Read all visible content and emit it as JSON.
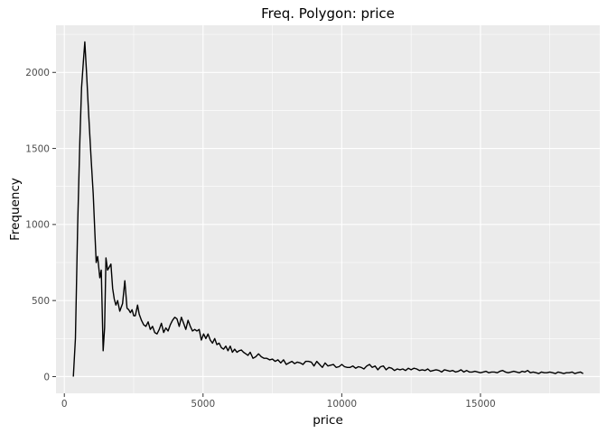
{
  "chart_data": {
    "type": "line",
    "title": "Freq. Polygon: price",
    "xlabel": "price",
    "ylabel": "Frequency",
    "xlim": [
      -300,
      19300
    ],
    "ylim": [
      -110,
      2310
    ],
    "x_ticks": [
      0,
      5000,
      10000,
      15000
    ],
    "x_tick_labels": [
      "0",
      "5000",
      "10000",
      "15000"
    ],
    "y_ticks": [
      0,
      500,
      1000,
      1500,
      2000
    ],
    "y_tick_labels": [
      "0",
      "500",
      "1000",
      "1500",
      "2000"
    ],
    "grid": true,
    "background": "#ebebeb",
    "line_color": "#000000",
    "series": [
      {
        "x": [
          326,
          400,
          480,
          560,
          620,
          690,
          740,
          800,
          880,
          960,
          1040,
          1100,
          1150,
          1200,
          1280,
          1330,
          1400,
          1450,
          1500,
          1560,
          1620,
          1680,
          1740,
          1800,
          1860,
          1920,
          2000,
          2100,
          2180,
          2260,
          2320,
          2380,
          2440,
          2500,
          2560,
          2640,
          2700,
          2780,
          2860,
          2940,
          3020,
          3100,
          3180,
          3260,
          3340,
          3420,
          3500,
          3580,
          3660,
          3740,
          3820,
          3900,
          3980,
          4060,
          4140,
          4220,
          4300,
          4380,
          4460,
          4540,
          4620,
          4700,
          4780,
          4860,
          4940,
          5020,
          5100,
          5180,
          5260,
          5340,
          5420,
          5500,
          5580,
          5660,
          5740,
          5820,
          5900,
          5980,
          6060,
          6140,
          6220,
          6300,
          6380,
          6460,
          6540,
          6620,
          6700,
          6800,
          6900,
          7000,
          7100,
          7200,
          7300,
          7400,
          7500,
          7600,
          7700,
          7800,
          7900,
          8000,
          8100,
          8200,
          8300,
          8400,
          8500,
          8600,
          8700,
          8800,
          8900,
          9000,
          9100,
          9200,
          9300,
          9400,
          9500,
          9600,
          9700,
          9800,
          9900,
          10000,
          10100,
          10200,
          10300,
          10400,
          10500,
          10600,
          10700,
          10800,
          10900,
          11000,
          11100,
          11200,
          11300,
          11400,
          11500,
          11600,
          11700,
          11800,
          11900,
          12000,
          12100,
          12200,
          12300,
          12400,
          12500,
          12600,
          12700,
          12800,
          12900,
          13000,
          13100,
          13200,
          13300,
          13400,
          13500,
          13600,
          13700,
          13800,
          13900,
          14000,
          14100,
          14200,
          14300,
          14400,
          14500,
          14600,
          14700,
          14800,
          14900,
          15000,
          15100,
          15200,
          15300,
          15400,
          15500,
          15600,
          15700,
          15800,
          15900,
          16000,
          16100,
          16200,
          16300,
          16400,
          16500,
          16600,
          16700,
          16800,
          16900,
          17000,
          17100,
          17200,
          17300,
          17400,
          17500,
          17600,
          17700,
          17800,
          17900,
          18000,
          18100,
          18200,
          18300,
          18400,
          18500,
          18600,
          18700
        ],
        "y": [
          0,
          250,
          1000,
          1550,
          1900,
          2080,
          2200,
          2000,
          1720,
          1450,
          1200,
          950,
          750,
          790,
          650,
          700,
          170,
          320,
          780,
          700,
          720,
          740,
          580,
          510,
          470,
          500,
          430,
          480,
          630,
          450,
          440,
          420,
          440,
          400,
          400,
          470,
          410,
          370,
          340,
          330,
          360,
          310,
          330,
          290,
          280,
          310,
          350,
          290,
          320,
          300,
          340,
          370,
          390,
          380,
          330,
          390,
          350,
          310,
          370,
          330,
          300,
          310,
          300,
          310,
          240,
          280,
          250,
          280,
          240,
          220,
          250,
          210,
          220,
          190,
          180,
          200,
          170,
          200,
          160,
          180,
          160,
          170,
          175,
          160,
          150,
          140,
          160,
          120,
          130,
          150,
          130,
          120,
          120,
          110,
          115,
          100,
          110,
          90,
          110,
          80,
          90,
          100,
          85,
          95,
          90,
          80,
          100,
          100,
          95,
          70,
          100,
          80,
          60,
          90,
          70,
          75,
          80,
          60,
          65,
          80,
          65,
          60,
          60,
          70,
          55,
          65,
          60,
          50,
          70,
          80,
          60,
          70,
          45,
          65,
          70,
          45,
          60,
          55,
          40,
          50,
          45,
          50,
          40,
          55,
          45,
          55,
          50,
          40,
          45,
          40,
          50,
          35,
          40,
          45,
          40,
          30,
          45,
          40,
          35,
          40,
          30,
          35,
          45,
          30,
          40,
          30,
          30,
          35,
          30,
          25,
          30,
          35,
          25,
          30,
          30,
          25,
          35,
          40,
          30,
          25,
          30,
          35,
          30,
          25,
          35,
          30,
          40,
          25,
          30,
          25,
          20,
          30,
          25,
          25,
          30,
          25,
          20,
          30,
          25,
          20,
          25,
          25,
          30,
          20,
          25,
          30,
          20
        ]
      }
    ]
  }
}
